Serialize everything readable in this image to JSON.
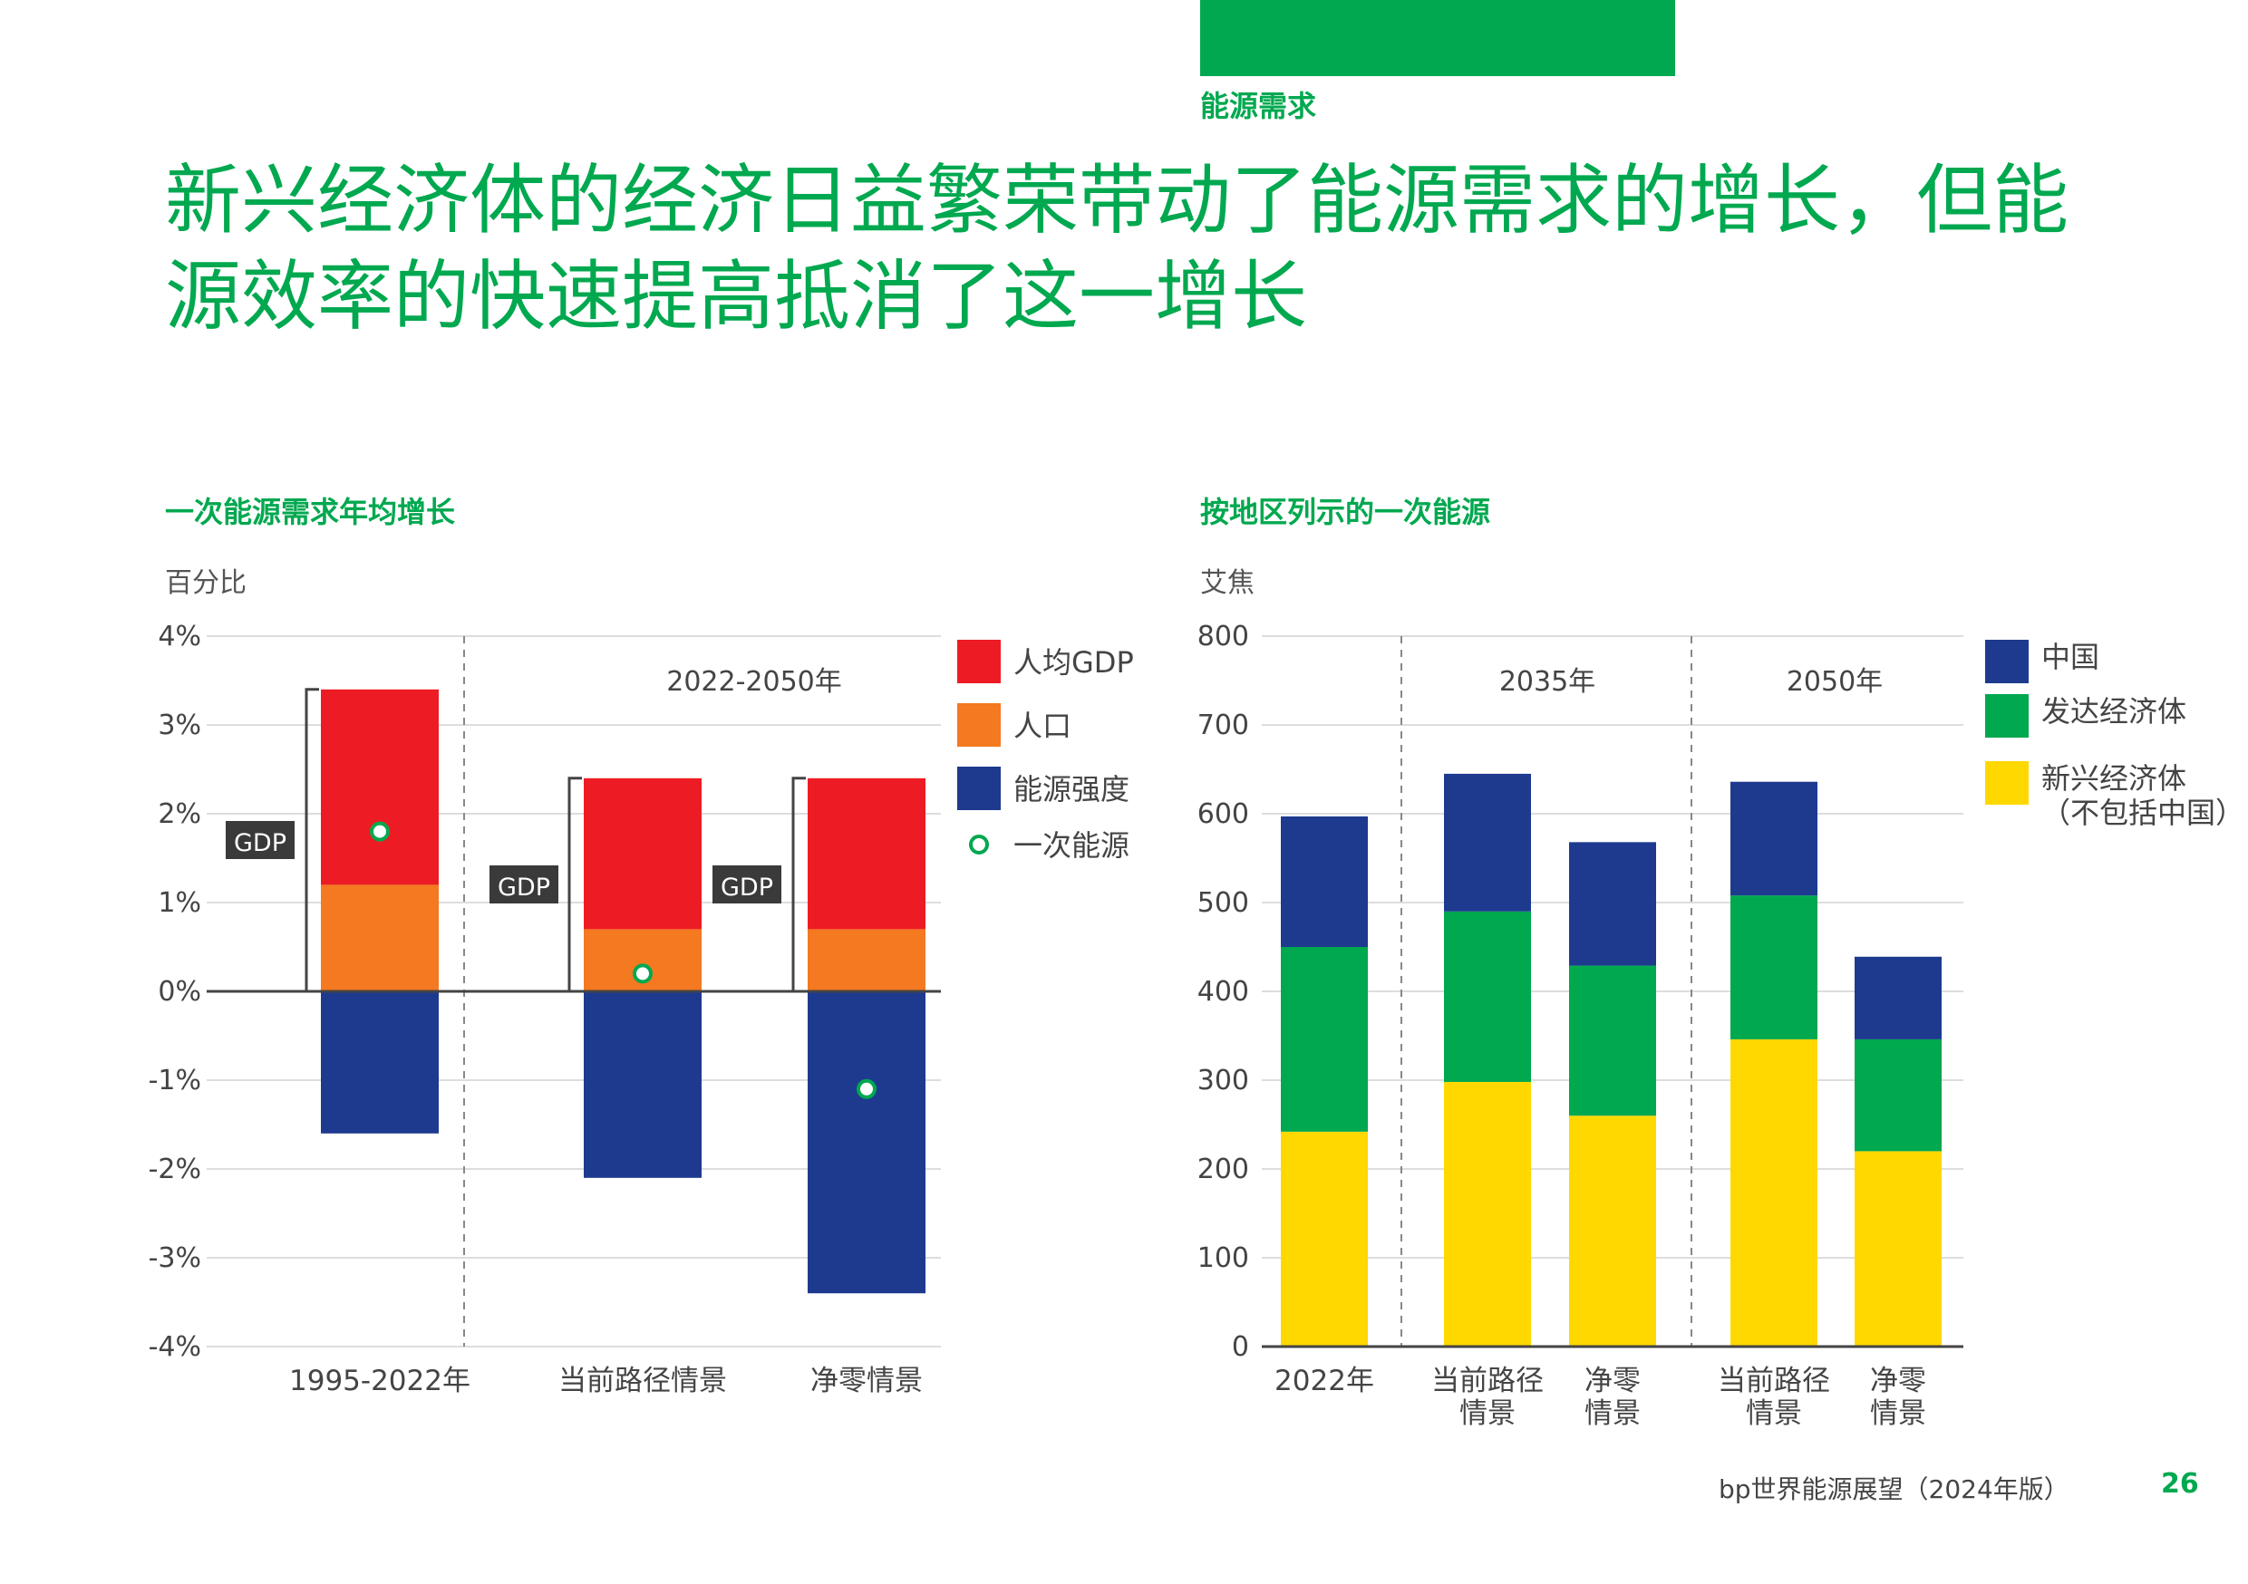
{
  "section": "能源需求",
  "headline": "新兴经济体的经济日益繁荣带动了能源需求的增长，但能源效率的快速提高抵消了这一增长",
  "footer": {
    "text": "bp世界能源展望（2024年版）",
    "page": "26"
  },
  "colors": {
    "brand_green": "#00a84f",
    "gdp_per_capita": "#ed1c24",
    "population": "#f47920",
    "energy_intensity": "#1d3a8f",
    "china": "#1d3a8f",
    "developed": "#00a84f",
    "emerging": "#ffd800"
  },
  "chart_data": [
    {
      "type": "bar",
      "stacked": true,
      "title": "一次能源需求年均增长",
      "unit_label": "百分比",
      "ylim": [
        -4,
        4
      ],
      "yticks": [
        "-4%",
        "-3%",
        "-2%",
        "-1%",
        "0%",
        "1%",
        "2%",
        "3%",
        "4%"
      ],
      "period_label": "2022-2050年",
      "categories": [
        "1995-2022年",
        "当前路径情景",
        "净零情景"
      ],
      "series": [
        {
          "name": "人均GDP",
          "values": [
            2.2,
            1.7,
            1.7
          ]
        },
        {
          "name": "人口",
          "values": [
            1.2,
            0.7,
            0.7
          ]
        },
        {
          "name": "能源强度",
          "values": [
            -1.6,
            -2.1,
            -3.4
          ]
        }
      ],
      "primary_energy": {
        "name": "一次能源",
        "values": [
          1.8,
          0.2,
          -1.1
        ]
      },
      "bracket_label": "GDP",
      "legend": [
        "人均GDP",
        "人口",
        "能源强度",
        "一次能源"
      ],
      "legend_position": "right",
      "grid": true
    },
    {
      "type": "bar",
      "stacked": true,
      "title": "按地区列示的一次能源",
      "unit_label": "艾焦",
      "ylim": [
        0,
        800
      ],
      "yticks": [
        "0",
        "100",
        "200",
        "300",
        "400",
        "500",
        "600",
        "700",
        "800"
      ],
      "group_labels": [
        "2035年",
        "2050年"
      ],
      "categories": [
        "2022年",
        "当前路径\n情景",
        "净零\n情景",
        "当前路径\n情景",
        "净零\n情景"
      ],
      "series": [
        {
          "name": "新兴经济体\n（不包括中国）",
          "values": [
            242,
            298,
            260,
            346,
            220
          ]
        },
        {
          "name": "发达经济体",
          "values": [
            208,
            192,
            169,
            162,
            126
          ]
        },
        {
          "name": "中国",
          "values": [
            147,
            155,
            139,
            128,
            93
          ]
        }
      ],
      "legend": [
        "中国",
        "发达经济体",
        "新兴经济体\n（不包括中国）"
      ],
      "legend_position": "right",
      "grid": true
    }
  ]
}
